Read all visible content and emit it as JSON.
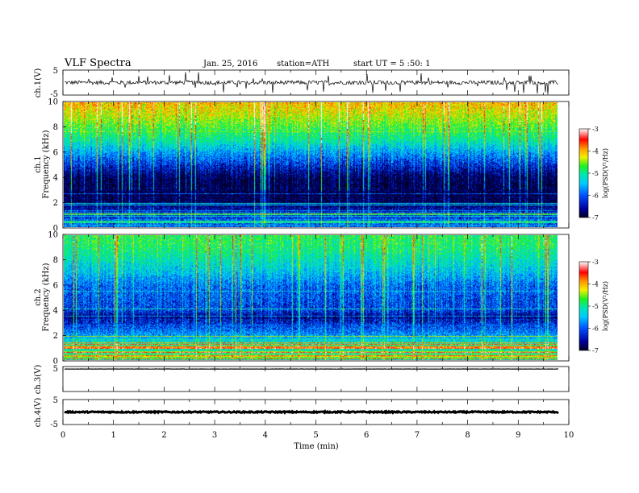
{
  "header": {
    "title": "VLF  Spectra",
    "date": "Jan. 25, 2016",
    "station": "station=ATH",
    "start": "start  UT =   5  :50: 1"
  },
  "colors": {
    "colormap": [
      "#000020",
      "#00009a",
      "#0050ff",
      "#00c8ff",
      "#00e6b4",
      "#20f020",
      "#f0f000",
      "#ff9600",
      "#ff0000",
      "#ffffff"
    ],
    "trace": "#000000",
    "ch3_trace": "#888888"
  },
  "chart_data": [
    {
      "type": "line",
      "name": "ch1-waveform",
      "ylabel": "ch.1(V)",
      "ylim": [
        -5,
        5
      ],
      "yticks": [
        "5",
        "-5"
      ],
      "xlim": [
        0,
        10
      ],
      "x_end_data": 9.8,
      "baseline": 0,
      "noise_amplitude": 0.8,
      "spike_amplitude": 4.5
    },
    {
      "type": "heatmap",
      "name": "ch1-spectrogram",
      "ylabel_lines": [
        "ch.1",
        "Frequency  (kHz)"
      ],
      "ylim": [
        0,
        10
      ],
      "yticks": [
        "0",
        "2",
        "4",
        "6",
        "8",
        "10"
      ],
      "xlim": [
        0,
        10
      ],
      "x_end_data": 9.8,
      "log_psd_range": [
        -7,
        -3
      ],
      "log_psd_profile": [
        {
          "f": 0,
          "v": -6.0
        },
        {
          "f": 1,
          "v": -6.3
        },
        {
          "f": 2,
          "v": -6.8
        },
        {
          "f": 3,
          "v": -6.9
        },
        {
          "f": 4,
          "v": -6.8
        },
        {
          "f": 5,
          "v": -6.3
        },
        {
          "f": 6,
          "v": -5.8
        },
        {
          "f": 7,
          "v": -5.2
        },
        {
          "f": 8,
          "v": -4.8
        },
        {
          "f": 9,
          "v": -4.4
        },
        {
          "f": 10,
          "v": -4.1
        }
      ],
      "colorbar": {
        "ticks": [
          "-3",
          "-4",
          "-5",
          "-6",
          "-7"
        ],
        "label": "log(PSD(V²/Hz)"
      }
    },
    {
      "type": "heatmap",
      "name": "ch2-spectrogram",
      "ylabel_lines": [
        "ch.2",
        "Frequency  (kHz)"
      ],
      "ylim": [
        0,
        10
      ],
      "yticks": [
        "0",
        "2",
        "4",
        "6",
        "8",
        "10"
      ],
      "xlim": [
        0,
        10
      ],
      "x_end_data": 9.8,
      "log_psd_range": [
        -7,
        -3
      ],
      "log_psd_profile": [
        {
          "f": 0,
          "v": -5.3
        },
        {
          "f": 1,
          "v": -5.2
        },
        {
          "f": 2,
          "v": -5.8
        },
        {
          "f": 3,
          "v": -6.3
        },
        {
          "f": 3.5,
          "v": -6.6
        },
        {
          "f": 4,
          "v": -6.2
        },
        {
          "f": 5,
          "v": -6.1
        },
        {
          "f": 6,
          "v": -6.0
        },
        {
          "f": 7,
          "v": -5.6
        },
        {
          "f": 8,
          "v": -5.3
        },
        {
          "f": 9,
          "v": -5.0
        },
        {
          "f": 10,
          "v": -4.9
        }
      ],
      "colorbar": {
        "ticks": [
          "-3",
          "-4",
          "-5",
          "-6",
          "-7"
        ],
        "label": "log(PSD(V²/Hz)"
      }
    },
    {
      "type": "line",
      "name": "ch3-waveform",
      "ylabel": "ch.3(V)",
      "ylim": [
        -5,
        5
      ],
      "yticks": [
        "5"
      ],
      "xlim": [
        0,
        10
      ],
      "x_end_data": 9.8,
      "baseline": 4.0,
      "noise_amplitude": 0.05
    },
    {
      "type": "line",
      "name": "ch4-waveform",
      "ylabel": "ch.4(V)",
      "ylim": [
        -5,
        5
      ],
      "yticks": [
        "5",
        "-5"
      ],
      "xlim": [
        0,
        10
      ],
      "x_end_data": 9.8,
      "baseline": 0,
      "noise_amplitude": 0.25,
      "xlabel": "Time  (min)",
      "xticks": [
        "0",
        "1",
        "2",
        "3",
        "4",
        "5",
        "6",
        "7",
        "8",
        "9",
        "10"
      ]
    }
  ]
}
